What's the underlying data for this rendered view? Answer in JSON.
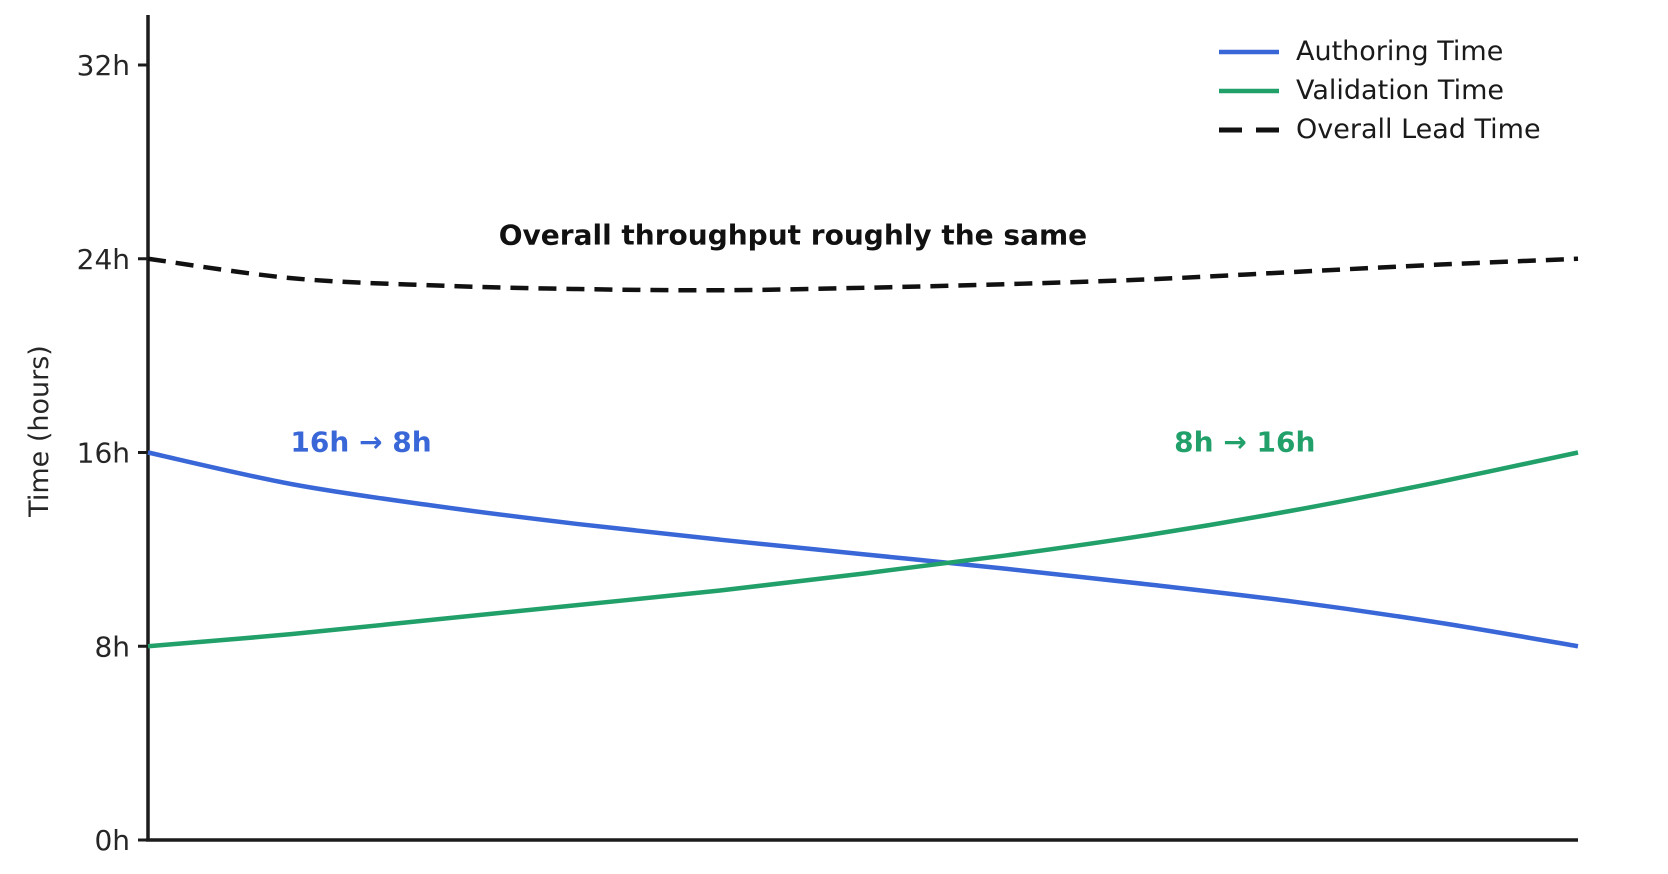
{
  "chart_data": {
    "type": "line",
    "title": "",
    "xlabel": "",
    "ylabel": "Time (hours)",
    "xlim": [
      0,
      1
    ],
    "ylim": [
      0,
      32
    ],
    "grid": false,
    "legend_position": "upper right",
    "x": [
      0,
      0.1,
      0.2,
      0.3,
      0.4,
      0.5,
      0.6,
      0.7,
      0.8,
      0.9,
      1.0
    ],
    "series": [
      {
        "name": "Authoring Time",
        "color": "#3a67d8",
        "style": "solid",
        "values": [
          16.0,
          14.7,
          13.8,
          13.05,
          12.4,
          11.8,
          11.2,
          10.55,
          9.85,
          9.0,
          8.0
        ]
      },
      {
        "name": "Validation Time",
        "color": "#22a06a",
        "style": "solid",
        "values": [
          8.0,
          8.5,
          9.1,
          9.7,
          10.3,
          11.0,
          11.75,
          12.6,
          13.6,
          14.75,
          16.0
        ]
      },
      {
        "name": "Overall Lead Time",
        "color": "#111111",
        "style": "dashed",
        "values": [
          24.0,
          23.2,
          22.9,
          22.75,
          22.7,
          22.8,
          22.95,
          23.15,
          23.45,
          23.75,
          24.0
        ]
      }
    ],
    "yticks": [
      {
        "value": 0,
        "label": "0h"
      },
      {
        "value": 8,
        "label": "8h"
      },
      {
        "value": 16,
        "label": "16h"
      },
      {
        "value": 24,
        "label": "24h"
      },
      {
        "value": 32,
        "label": "32h"
      }
    ],
    "xticks": [],
    "annotations": [
      {
        "text": "16h → 8h",
        "color": "#3a67d8",
        "x": 0.149,
        "y": 16.45
      },
      {
        "text": "8h → 16h",
        "color": "#22a06a",
        "x": 0.767,
        "y": 16.45
      },
      {
        "text": "Overall throughput roughly the same",
        "color": "#111111",
        "x": 0.451,
        "y": 25.0
      }
    ]
  }
}
